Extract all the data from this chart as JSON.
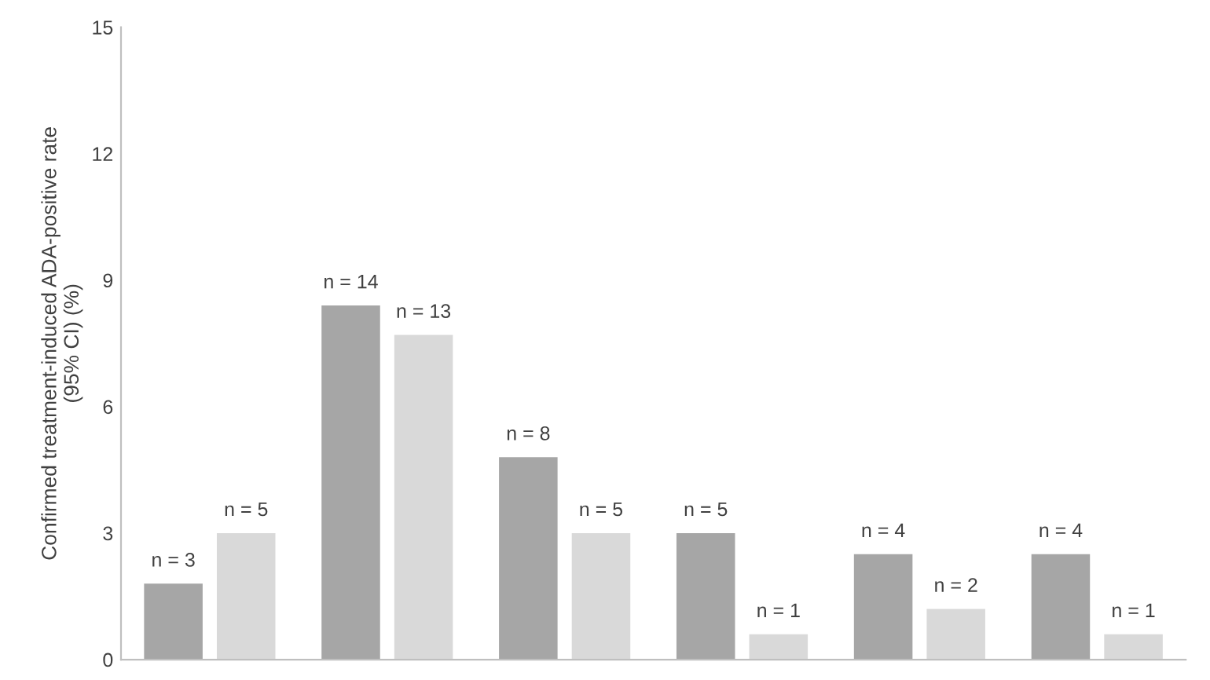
{
  "chart_data": {
    "type": "bar",
    "ylabel": "Confirmed treatment-induced ADA-positive rate\n(95% CI) (%)",
    "categories": [
      null,
      null,
      null,
      null,
      null,
      null
    ],
    "series": [
      {
        "color": "#a6a6a6",
        "values": [
          1.8,
          8.4,
          4.8,
          3.0,
          2.5,
          2.5
        ]
      },
      {
        "color": "#d9d9d9",
        "values": [
          3.0,
          7.7,
          3.0,
          0.6,
          1.2,
          0.6
        ]
      }
    ],
    "annotations": [
      "n = 3",
      "n = 14",
      "n = 8",
      "n = 5",
      "n = 4",
      "n = 4",
      "n = 5",
      "n = 13",
      "n = 5",
      "n = 1",
      "n = 2",
      "n = 1"
    ],
    "ylim": [
      0,
      15
    ],
    "yticks": [
      0,
      3,
      6,
      9,
      12,
      15
    ],
    "grid": false,
    "legend": false
  }
}
